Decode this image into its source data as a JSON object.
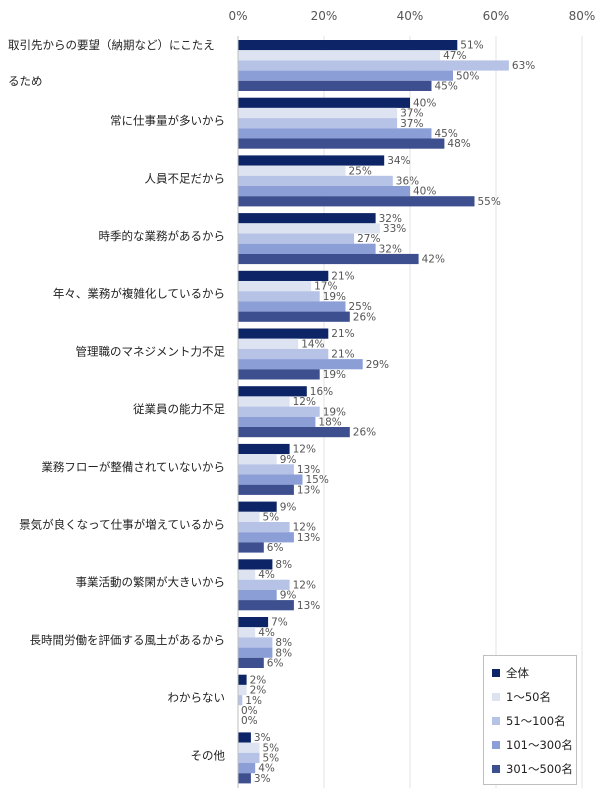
{
  "chart_data": {
    "type": "bar",
    "orientation": "horizontal",
    "categories": [
      "取引先からの要望（納期など）にこたえるため",
      "常に仕事量が多いから",
      "人員不足だから",
      "時季的な業務があるから",
      "年々、業務が複雑化しているから",
      "管理職のマネジメント力不足",
      "従業員の能力不足",
      "業務フローが整備されていないから",
      "景気が良くなって仕事が増えているから",
      "事業活動の繁閑が大きいから",
      "長時間労働を評価する風土があるから",
      "わからない",
      "その他"
    ],
    "category_lines": [
      [
        "取引先からの要望（納期など）にこたえ",
        "るため"
      ],
      [
        "常に仕事量が多いから"
      ],
      [
        "人員不足だから"
      ],
      [
        "時季的な業務があるから"
      ],
      [
        "年々、業務が複雑化しているから"
      ],
      [
        "管理職のマネジメント力不足"
      ],
      [
        "従業員の能力不足"
      ],
      [
        "業務フローが整備されていないから"
      ],
      [
        "景気が良くなって仕事が増えているから"
      ],
      [
        "事業活動の繁閑が大きいから"
      ],
      [
        "長時間労働を評価する風土があるから"
      ],
      [
        "わからない"
      ],
      [
        "その他"
      ]
    ],
    "series": [
      {
        "name": "全体",
        "color": "#0d2566",
        "values": [
          51,
          40,
          34,
          32,
          21,
          21,
          16,
          12,
          9,
          8,
          7,
          2,
          3
        ]
      },
      {
        "name": "1～50名",
        "color": "#dde3f1",
        "values": [
          47,
          37,
          25,
          33,
          17,
          14,
          12,
          9,
          5,
          4,
          4,
          2,
          5
        ]
      },
      {
        "name": "51～100名",
        "color": "#b7c3e6",
        "values": [
          63,
          37,
          36,
          27,
          19,
          21,
          19,
          13,
          12,
          12,
          8,
          1,
          5
        ]
      },
      {
        "name": "101～300名",
        "color": "#8c9ed6",
        "values": [
          50,
          45,
          40,
          32,
          25,
          29,
          18,
          15,
          13,
          9,
          8,
          0,
          4
        ]
      },
      {
        "name": "301～500名",
        "color": "#3d4f8f",
        "values": [
          45,
          48,
          55,
          42,
          26,
          19,
          26,
          13,
          6,
          13,
          6,
          0,
          3
        ]
      }
    ],
    "xlim": [
      0,
      80
    ],
    "xticks": [
      "0%",
      "20%",
      "40%",
      "60%",
      "80%"
    ],
    "value_suffix": "%",
    "grid": true,
    "legend_position": "bottom-right"
  }
}
